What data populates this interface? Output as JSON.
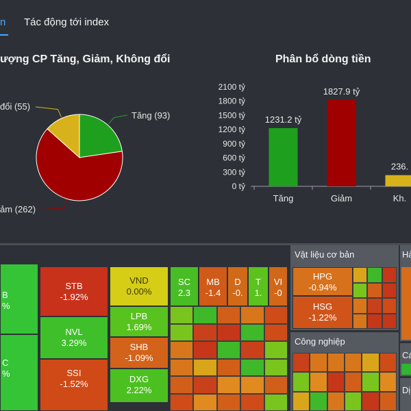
{
  "tabs": [
    {
      "label": "n",
      "active": true
    },
    {
      "label": "Tác động tới index",
      "active": false
    }
  ],
  "pie_panel": {
    "title": "ượng CP Tăng, Giảm, Không đổi"
  },
  "bar_panel": {
    "title": "Phân bổ dòng tiền"
  },
  "chart_data": [
    {
      "type": "pie",
      "title": "ượng CP Tăng, Giảm, Không đổi",
      "labels": [
        "Tăng (93)",
        "ảm (262)",
        "đổi (55)"
      ],
      "values": [
        93,
        262,
        55
      ],
      "colors": [
        "#1ea01e",
        "#a10000",
        "#d8b21a"
      ]
    },
    {
      "type": "bar",
      "title": "Phân bổ dòng tiền",
      "categories": [
        "Tăng",
        "Giảm",
        "Kh."
      ],
      "values": [
        1231.2,
        1827.9,
        236.0
      ],
      "value_labels": [
        "1231.2 tỷ",
        "1827.9 tỷ",
        "236."
      ],
      "colors": [
        "#1ea01e",
        "#a10000",
        "#d8b21a"
      ],
      "ylim": [
        0,
        2100
      ],
      "yticks": [
        0,
        300,
        600,
        900,
        1200,
        1500,
        1800,
        2100
      ],
      "ytick_labels": [
        "0 tỷ",
        "300 tỷ",
        "600 tỷ",
        "900 tỷ",
        "1200 tỷ",
        "1500 tỷ",
        "1800 tỷ",
        "2100 tỷ"
      ]
    }
  ],
  "heatmap": {
    "tiles": [
      {
        "id": "t1",
        "symbol": "B",
        "change": "%",
        "color": "#35c435"
      },
      {
        "id": "t2",
        "symbol": "C",
        "change": "%",
        "color": "#35c435"
      },
      {
        "id": "t3",
        "symbol": "STB",
        "change": "-1.92%",
        "color": "#c8321a"
      },
      {
        "id": "t4",
        "symbol": "NVL",
        "change": "3.29%",
        "color": "#3fbf2a"
      },
      {
        "id": "t5",
        "symbol": "SSI",
        "change": "-1.52%",
        "color": "#cf4a16"
      },
      {
        "id": "t6",
        "symbol": "VND",
        "change": "0.00%",
        "color": "#d6cd16"
      },
      {
        "id": "t7",
        "symbol": "LPB",
        "change": "1.69%",
        "color": "#58c21e"
      },
      {
        "id": "t8",
        "symbol": "SHB",
        "change": "-1.09%",
        "color": "#d3631a"
      },
      {
        "id": "t9",
        "symbol": "DXG",
        "change": "2.22%",
        "color": "#4cc021"
      },
      {
        "id": "t10",
        "symbol": "SC",
        "change": "2.3",
        "color": "#48bd24"
      },
      {
        "id": "t11",
        "symbol": "MB",
        "change": "-1.4",
        "color": "#d05a18"
      },
      {
        "id": "t12",
        "symbol": "D",
        "change": "-0.",
        "color": "#d06a18"
      },
      {
        "id": "t13",
        "symbol": "T",
        "change": "1.",
        "color": "#5cc21e"
      },
      {
        "id": "t14",
        "symbol": "VI",
        "change": "-0",
        "color": "#d0671a"
      }
    ],
    "sectors": [
      {
        "id": "s1",
        "title": "Vật liệu cơ bản",
        "stocks": [
          {
            "symbol": "HPG",
            "change": "-0.94%"
          },
          {
            "symbol": "HSG",
            "change": "-1.22%"
          }
        ]
      },
      {
        "id": "s2",
        "title": "Công nghiệp"
      },
      {
        "id": "s3",
        "title": "Hà"
      },
      {
        "id": "s4",
        "title": "Cá"
      },
      {
        "id": "s5",
        "title": "Dị"
      }
    ]
  }
}
